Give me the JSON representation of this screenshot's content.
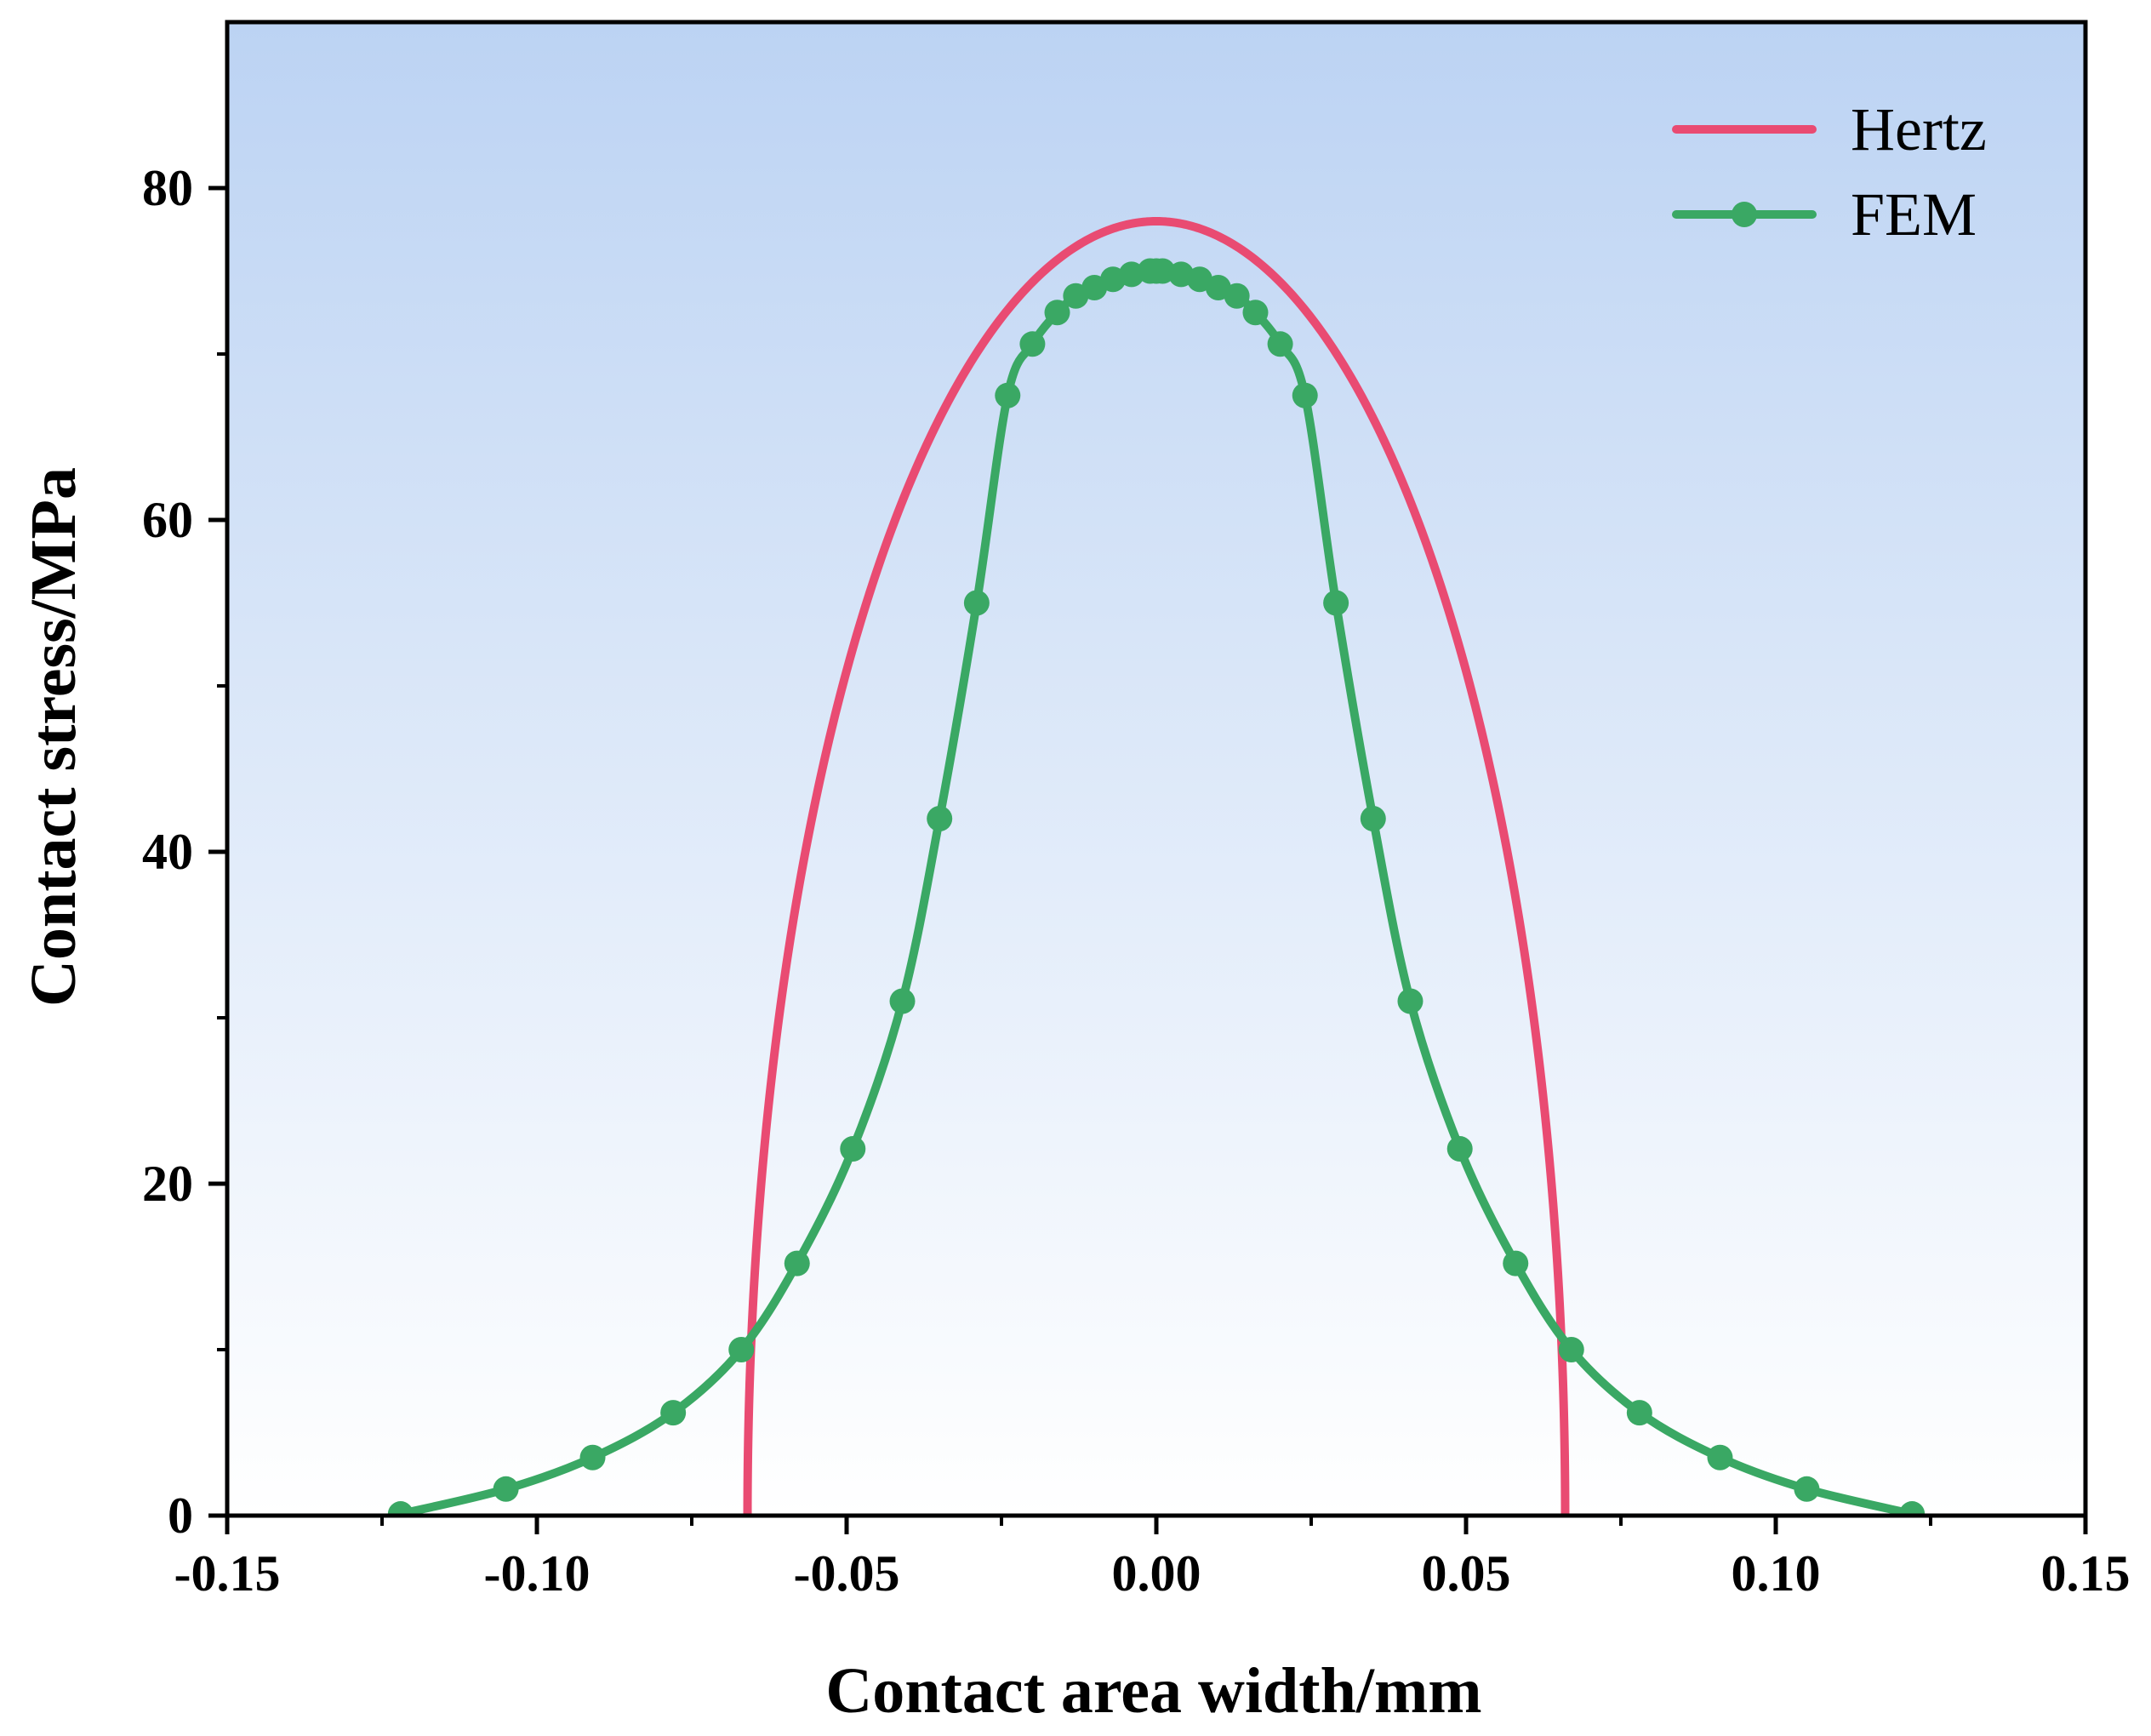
{
  "chart_data": {
    "type": "line",
    "title": "",
    "xlabel": "Contact area width/mm",
    "ylabel": "Contact stress/MPa",
    "xlim": [
      -0.15,
      0.15
    ],
    "ylim": [
      0,
      90
    ],
    "x_major_ticks": [
      -0.15,
      -0.1,
      -0.05,
      0.0,
      0.05,
      0.1,
      0.15
    ],
    "x_tick_labels": [
      "-0.15",
      "-0.10",
      "-0.05",
      "0.00",
      "0.05",
      "0.10",
      "0.15"
    ],
    "x_minor_ticks": [
      -0.125,
      -0.075,
      -0.025,
      0.025,
      0.075,
      0.125
    ],
    "y_major_ticks": [
      0,
      20,
      40,
      60,
      80
    ],
    "y_tick_labels": [
      "0",
      "20",
      "40",
      "60",
      "80"
    ],
    "y_minor_ticks": [
      10,
      30,
      50,
      70
    ],
    "grid": false,
    "legend_position": "top-right",
    "background": {
      "top_color": "#bcd3f3",
      "bottom_color": "#ffffff"
    },
    "series": [
      {
        "name": "Hertz",
        "color": "#e94b72",
        "marker": false,
        "form": "semi-ellipse",
        "half_width": 0.066,
        "peak": 78,
        "x": [
          -0.066,
          -0.06,
          -0.05,
          -0.04,
          -0.03,
          -0.02,
          -0.01,
          0.0,
          0.01,
          0.02,
          0.03,
          0.04,
          0.05,
          0.06,
          0.066
        ],
        "values": [
          0,
          32.5,
          50.9,
          62.0,
          69.5,
          74.3,
          77.1,
          78.0,
          77.1,
          74.3,
          69.5,
          62.0,
          50.9,
          32.5,
          0
        ]
      },
      {
        "name": "FEM",
        "color": "#3aa864",
        "marker": true,
        "x": [
          -0.122,
          -0.105,
          -0.091,
          -0.078,
          -0.067,
          -0.058,
          -0.049,
          -0.041,
          -0.035,
          -0.029,
          -0.024,
          -0.02,
          -0.016,
          -0.013,
          -0.01,
          -0.007,
          -0.004,
          -0.001,
          0.0,
          0.001,
          0.004,
          0.007,
          0.01,
          0.013,
          0.016,
          0.02,
          0.024,
          0.029,
          0.035,
          0.041,
          0.049,
          0.058,
          0.067,
          0.078,
          0.091,
          0.105,
          0.122
        ],
        "values": [
          0.1,
          1.6,
          3.5,
          6.2,
          10.0,
          15.2,
          22.1,
          31.0,
          42.0,
          55.0,
          67.5,
          70.6,
          72.5,
          73.5,
          74.0,
          74.5,
          74.8,
          75.0,
          75.0,
          75.0,
          74.8,
          74.5,
          74.0,
          73.5,
          72.5,
          70.6,
          67.5,
          55.0,
          42.0,
          31.0,
          22.1,
          15.2,
          10.0,
          6.2,
          3.5,
          1.6,
          0.1
        ]
      }
    ]
  }
}
